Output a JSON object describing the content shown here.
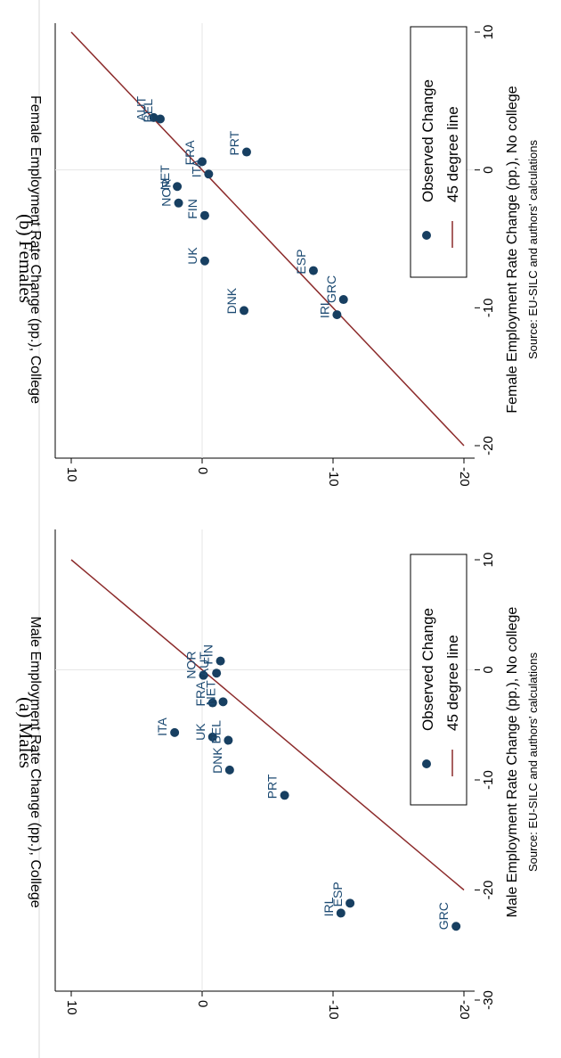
{
  "figure": {
    "source_note": "Source: EU-SILC and authors' calculations"
  },
  "colors": {
    "point": "#173f61",
    "label": "#1c4a72",
    "line": "#8c2b2b",
    "grid": "#e6e6e6",
    "frame": "#000000"
  },
  "chart_data": [
    {
      "type": "scatter",
      "panel_title": "(a) Males",
      "xlabel": "Male Employment Rate Change (pp.), No college",
      "ylabel": "Male Employment Rate Change (pp.), College",
      "xlim": [
        -31,
        11
      ],
      "ylim": [
        -21,
        11
      ],
      "xticks": [
        -30,
        -20,
        -10,
        0,
        10
      ],
      "yticks": [
        -20,
        -10,
        0,
        10
      ],
      "grid": true,
      "legend_position": "right",
      "legend": [
        {
          "name": "Observed Change",
          "marker": "dot"
        },
        {
          "name": "45 degree line",
          "marker": "line"
        }
      ],
      "reference_line": {
        "x": [
          -20,
          10
        ],
        "y": [
          -20,
          10
        ]
      },
      "points": [
        {
          "label": "ITA",
          "x": -5.7,
          "y": 2.1
        },
        {
          "label": "UK",
          "x": -6.1,
          "y": -0.8
        },
        {
          "label": "DNK",
          "x": -9.1,
          "y": -2.1
        },
        {
          "label": "BEL",
          "x": -6.4,
          "y": -2.0
        },
        {
          "label": "FRA",
          "x": -3.0,
          "y": -0.8
        },
        {
          "label": "NET",
          "x": -2.9,
          "y": -1.6
        },
        {
          "label": "NOR",
          "x": -0.5,
          "y": -0.1
        },
        {
          "label": "AUT",
          "x": -0.3,
          "y": -1.1
        },
        {
          "label": "FIN",
          "x": 0.8,
          "y": -1.4
        },
        {
          "label": "PRT",
          "x": -11.4,
          "y": -6.3
        },
        {
          "label": "IRL",
          "x": -22.1,
          "y": -10.6
        },
        {
          "label": "ESP",
          "x": -21.2,
          "y": -11.3
        },
        {
          "label": "GRC",
          "x": -23.3,
          "y": -19.4
        }
      ]
    },
    {
      "type": "scatter",
      "panel_title": "(b) Females",
      "xlabel": "Female Employment Rate Change (pp.), No college",
      "ylabel": "Female Employment Rate Change (pp.), College",
      "xlim": [
        -21,
        11
      ],
      "ylim": [
        -21,
        11
      ],
      "xticks": [
        -20,
        -10,
        0,
        10
      ],
      "yticks": [
        -20,
        -10,
        0,
        10
      ],
      "grid": true,
      "legend_position": "right",
      "legend": [
        {
          "name": "Observed Change",
          "marker": "dot"
        },
        {
          "name": "45 degree line",
          "marker": "line"
        }
      ],
      "reference_line": {
        "x": [
          -20,
          10
        ],
        "y": [
          -20,
          10
        ]
      },
      "points": [
        {
          "label": "AUT",
          "x": 3.8,
          "y": 3.7
        },
        {
          "label": "BEL",
          "x": 3.7,
          "y": 3.2
        },
        {
          "label": "FRA",
          "x": 0.6,
          "y": 0.0
        },
        {
          "label": "ITA",
          "x": -0.3,
          "y": -0.5
        },
        {
          "label": "PRT",
          "x": 1.3,
          "y": -3.4
        },
        {
          "label": "NET",
          "x": -1.2,
          "y": 1.9
        },
        {
          "label": "NOR",
          "x": -2.4,
          "y": 1.8
        },
        {
          "label": "FIN",
          "x": -3.3,
          "y": -0.2
        },
        {
          "label": "UK",
          "x": -6.6,
          "y": -0.2
        },
        {
          "label": "DNK",
          "x": -10.2,
          "y": -3.2
        },
        {
          "label": "ESP",
          "x": -7.3,
          "y": -8.5
        },
        {
          "label": "GRC",
          "x": -9.4,
          "y": -10.8
        },
        {
          "label": "IRL",
          "x": -10.5,
          "y": -10.3
        }
      ]
    }
  ]
}
